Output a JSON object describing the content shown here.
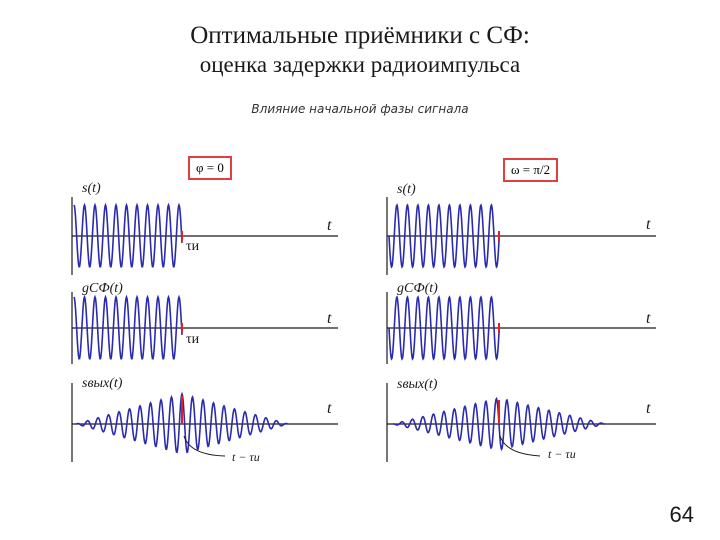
{
  "title_line1": "Оптимальные приёмники с СФ:",
  "title_line2": "оценка задержки радиоимпульса",
  "subtitle": "Влияние начальной фазы сигнала",
  "page_number": "64",
  "colors": {
    "signal": "#2b2bb0",
    "marker": "#e02020",
    "axis": "#1a1a1a"
  },
  "columns": [
    {
      "phase_label": "φ = 0",
      "rows": [
        {
          "ylabel": "s(t)",
          "xlabel": "t",
          "tau": "τи",
          "kind": "pulse"
        },
        {
          "ylabel": "gСФ(t)",
          "xlabel": "t",
          "tau": "τи",
          "kind": "pulse"
        },
        {
          "ylabel": "sвых(t)",
          "xlabel": "t",
          "kind": "output"
        }
      ],
      "annotation": "t − τи"
    },
    {
      "phase_label": "ω = π/2",
      "rows": [
        {
          "ylabel": "s(t)",
          "xlabel": "t",
          "kind": "pulse"
        },
        {
          "ylabel": "gСФ(t)",
          "xlabel": "t",
          "kind": "pulse"
        },
        {
          "ylabel": "sвых(t)",
          "xlabel": "t",
          "kind": "output"
        }
      ],
      "annotation": "t − τи"
    }
  ]
}
